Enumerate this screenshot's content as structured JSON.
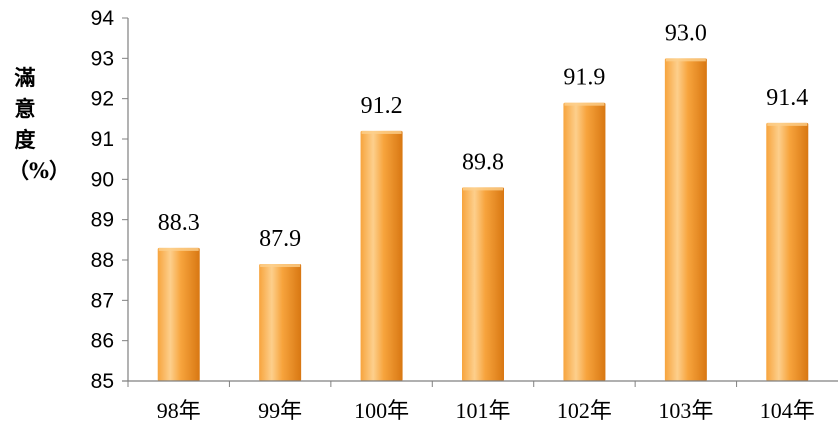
{
  "chart_data": {
    "type": "bar",
    "title": "",
    "xlabel": "",
    "ylabel": "滿意度（%）",
    "categories": [
      "98年",
      "99年",
      "100年",
      "101年",
      "102年",
      "103年",
      "104年"
    ],
    "values": [
      88.3,
      87.9,
      91.2,
      89.8,
      91.9,
      93.0,
      91.4
    ],
    "data_labels": [
      "88.3",
      "87.9",
      "91.2",
      "89.8",
      "91.9",
      "93.0",
      "91.4"
    ],
    "ylim": [
      85,
      94
    ],
    "yticks": [
      85,
      86,
      87,
      88,
      89,
      90,
      91,
      92,
      93,
      94
    ],
    "grid": false,
    "legend": "none",
    "colors": {
      "bar_light": "#FDCF8C",
      "bar_mid": "#F7A43D",
      "bar_dark": "#D87712",
      "axis": "#808080"
    }
  }
}
